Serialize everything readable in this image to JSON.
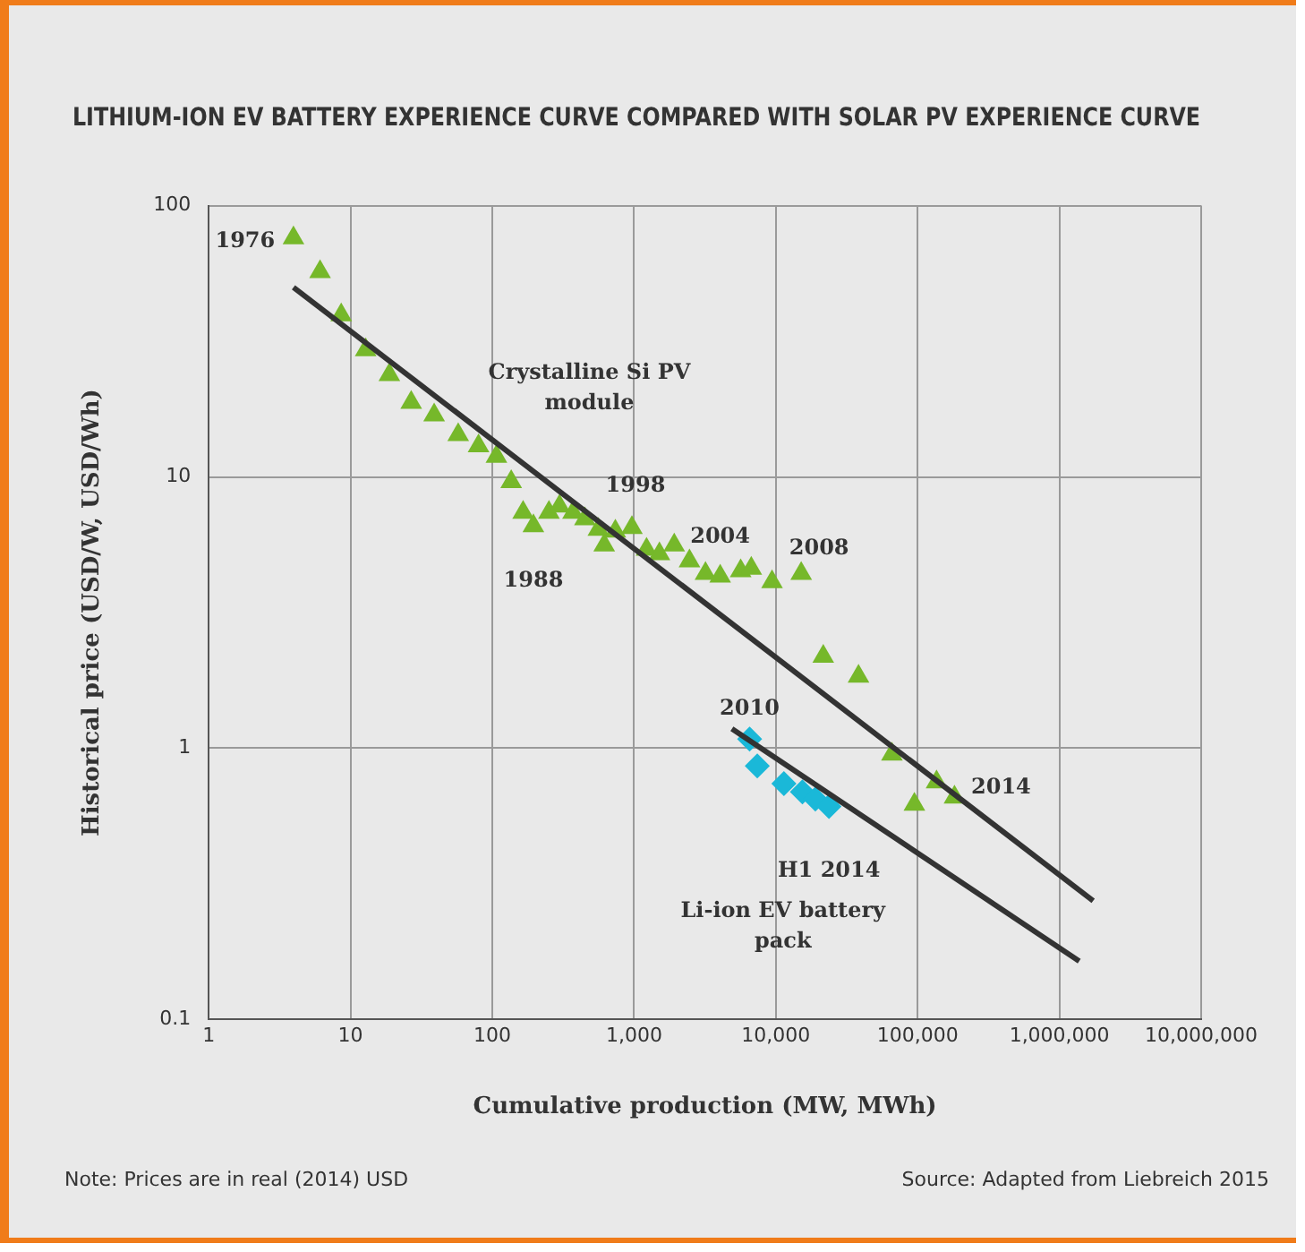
{
  "chart_data": {
    "type": "scatter",
    "title": "LITHIUM-ION EV BATTERY EXPERIENCE CURVE COMPARED WITH SOLAR PV EXPERIENCE CURVE",
    "xlabel": "Cumulative production (MW, MWh)",
    "ylabel": "Historical price (USD/W, USD/Wh)",
    "log": "xy",
    "grid": true,
    "legend": false,
    "xlim": [
      1,
      10000000
    ],
    "xticks": [
      1,
      10,
      100,
      {
        "value": 1000,
        "label": "1,000"
      },
      {
        "value": 10000,
        "label": "10,000"
      },
      {
        "value": 100000,
        "label": "100,000"
      },
      {
        "value": 1000000,
        "label": "1,000,000"
      },
      {
        "value": 10000000,
        "label": "10,000,000"
      }
    ],
    "ylim": [
      0.1,
      100
    ],
    "yticks": [
      0.1,
      1,
      10,
      100
    ],
    "series": [
      {
        "type": "line",
        "name": "Crystalline Si PV module",
        "color": "#333333",
        "marker": "none",
        "x": [
          3.96,
          1730000
        ],
        "values": [
          50,
          0.274
        ]
      },
      {
        "type": "line",
        "name": "Li-ion EV battery pack",
        "color": "#333333",
        "marker": "none",
        "x": [
          4900,
          1380000
        ],
        "values": [
          1.18,
          0.164
        ]
      },
      {
        "color": "#76b82a",
        "marker": "triangle",
        "x": [
          3.96,
          6.1,
          8.6,
          12.8,
          18.8,
          26.8,
          38.9,
          57.5,
          80,
          107,
          136,
          165,
          195,
          251,
          298,
          371,
          450,
          560,
          616,
          738,
          966,
          1225,
          1510,
          1920,
          2460,
          3190,
          4050,
          5650,
          6710,
          9400,
          15100,
          21600,
          38300,
          65900,
          94900,
          136000,
          182000
        ],
        "values": [
          76,
          57,
          39.5,
          29.4,
          23.8,
          18.8,
          16.9,
          14.3,
          13,
          11.9,
          9.6,
          7.4,
          6.6,
          7.4,
          7.8,
          7.4,
          7,
          6.4,
          5.6,
          6.3,
          6.5,
          5.4,
          5.2,
          5.6,
          4.9,
          4.4,
          4.3,
          4.5,
          4.6,
          4.1,
          4.4,
          2.18,
          1.84,
          0.95,
          0.62,
          0.75,
          0.66
        ]
      },
      {
        "color": "#1ab8d8",
        "marker": "diamond",
        "x": [
          6530,
          7400,
          11400,
          15400,
          19000,
          23700
        ],
        "values": [
          1.08,
          0.86,
          0.74,
          0.69,
          0.65,
          0.61
        ]
      }
    ],
    "annotations": [
      {
        "text": "1976",
        "x": 3.96,
        "y": 76
      },
      {
        "text": "1988",
        "x": 195,
        "y": 6.6
      },
      {
        "text": "1998",
        "x": 966,
        "y": 6.5
      },
      {
        "text": "2004",
        "x": 4050,
        "y": 4.3
      },
      {
        "text": "2008",
        "x": 15100,
        "y": 4.4
      },
      {
        "text": "2014",
        "x": 182000,
        "y": 0.66
      },
      {
        "text": "2010",
        "x": 6530,
        "y": 1.08
      },
      {
        "text": "H1 2014",
        "x": 23700,
        "y": 0.61
      },
      "Note: Prices are in real (2014) USD",
      "Source: Adapted from Liebreich 2015"
    ]
  }
}
